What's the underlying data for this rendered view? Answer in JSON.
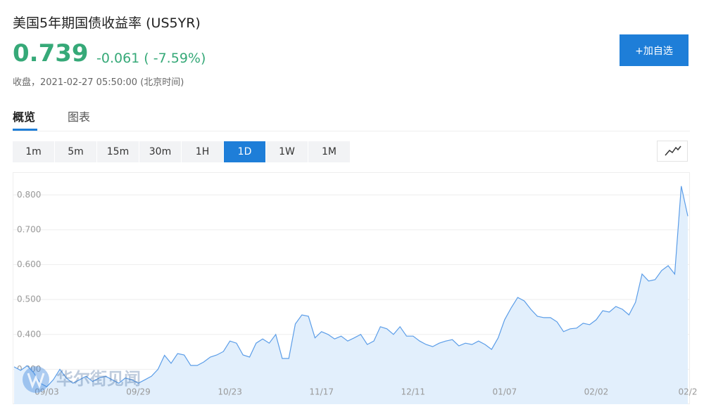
{
  "header": {
    "title": "美国5年期国债收益率 (US5YR)",
    "price": "0.739",
    "change": "-0.061 ( -7.59%)",
    "close_time": "收盘，2021-02-27 05:50:00 (北京时间)",
    "watchlist_button": "+加自选"
  },
  "tabs": [
    "概览",
    "图表"
  ],
  "intervals": [
    "1m",
    "5m",
    "15m",
    "30m",
    "1H",
    "1D",
    "1W",
    "1M"
  ],
  "watermark": "华尔街见闻",
  "chart_data": {
    "type": "area",
    "color": "#5b9de8",
    "fill": "#e2effc",
    "grid": true,
    "ylim": [
      0.2,
      0.865
    ],
    "yticks": [
      {
        "value": 0.3,
        "label": "0.300"
      },
      {
        "value": 0.4,
        "label": "0.400"
      },
      {
        "value": 0.5,
        "label": "0.500"
      },
      {
        "value": 0.6,
        "label": "0.600"
      },
      {
        "value": 0.7,
        "label": "0.700"
      },
      {
        "value": 0.8,
        "label": "0.800"
      }
    ],
    "categories": [
      null,
      null,
      null,
      null,
      null,
      "09/03",
      null,
      null,
      null,
      null,
      null,
      null,
      null,
      null,
      null,
      null,
      null,
      null,
      null,
      "09/29",
      null,
      null,
      null,
      null,
      null,
      null,
      null,
      null,
      null,
      null,
      null,
      null,
      null,
      "10/23",
      null,
      null,
      null,
      null,
      null,
      null,
      null,
      null,
      null,
      null,
      null,
      null,
      null,
      "11/17",
      null,
      null,
      null,
      null,
      null,
      null,
      null,
      null,
      null,
      null,
      null,
      null,
      null,
      "12/11",
      null,
      null,
      null,
      null,
      null,
      null,
      null,
      null,
      null,
      null,
      null,
      null,
      null,
      "01/07",
      null,
      null,
      null,
      null,
      null,
      null,
      null,
      null,
      null,
      null,
      null,
      null,
      null,
      "02/02",
      null,
      null,
      null,
      null,
      null,
      null,
      null,
      null,
      null,
      null,
      null,
      null,
      null,
      "02/2"
    ],
    "values": [
      0.307,
      0.297,
      0.31,
      0.29,
      0.26,
      0.25,
      0.27,
      0.3,
      0.275,
      0.26,
      0.27,
      0.28,
      0.265,
      0.275,
      0.28,
      0.27,
      0.26,
      0.275,
      0.27,
      0.26,
      0.27,
      0.28,
      0.3,
      0.34,
      0.317,
      0.345,
      0.341,
      0.311,
      0.311,
      0.321,
      0.335,
      0.341,
      0.351,
      0.381,
      0.375,
      0.341,
      0.335,
      0.375,
      0.387,
      0.375,
      0.4,
      0.331,
      0.331,
      0.43,
      0.456,
      0.452,
      0.39,
      0.408,
      0.4,
      0.387,
      0.395,
      0.381,
      0.39,
      0.4,
      0.371,
      0.381,
      0.422,
      0.416,
      0.4,
      0.422,
      0.395,
      0.395,
      0.381,
      0.371,
      0.365,
      0.375,
      0.381,
      0.385,
      0.367,
      0.375,
      0.371,
      0.381,
      0.371,
      0.357,
      0.39,
      0.442,
      0.476,
      0.506,
      0.496,
      0.472,
      0.452,
      0.448,
      0.448,
      0.436,
      0.408,
      0.416,
      0.418,
      0.432,
      0.428,
      0.442,
      0.468,
      0.464,
      0.48,
      0.472,
      0.456,
      0.492,
      0.573,
      0.553,
      0.557,
      0.583,
      0.597,
      0.573,
      0.825,
      0.739
    ]
  }
}
